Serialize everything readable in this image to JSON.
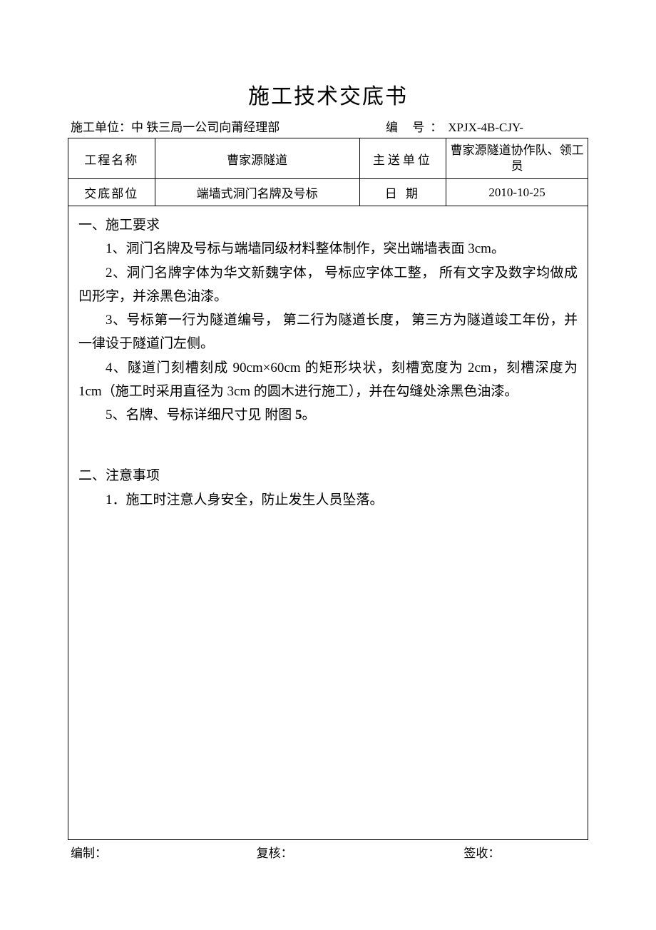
{
  "title": "施工技术交底书",
  "header": {
    "unit_label": "施工单位：",
    "unit_value": "中 铁三局一公司向莆经理部",
    "code_label": "编  号：",
    "code_value": "XPJX-4B-CJY-"
  },
  "table": {
    "row1": {
      "label1": "工程名称",
      "value1": "曹家源隧道",
      "label2": "主送单位",
      "value2": "曹家源隧道协作队、领工员"
    },
    "row2": {
      "label1": "交底部位",
      "value1": "端墙式洞门名牌及号标",
      "label2": "日    期",
      "value2": "2010-10-25"
    }
  },
  "content": {
    "section1_title": "一、施工要求",
    "p1": "1、洞门名牌及号标与端墙同级材料整体制作，突出端墙表面    3cm。",
    "p2": "2、洞门名牌字体为华文新魏字体，  号标应字体工整，  所有文字及数字均做成凹形字，并涂黑色油漆。",
    "p3": "3、号标第一行为隧道编号，  第二行为隧道长度，  第三方为隧道竣工年份，并一律设于隧道门左侧。",
    "p4": "4、隧道门刻槽刻成 90cm×60cm 的矩形块状，刻槽宽度为 2cm，刻槽深度为 1cm（施工时采用直径为 3cm 的圆木进行施工），并在勾缝处涂黑色油漆。",
    "p5_prefix": "5、名牌、号标详细尺寸见  附图 ",
    "p5_bold": "5",
    "p5_suffix": "。",
    "section2_title": "二、注意事项",
    "p6": "1．施工时注意人身安全，防止发生人员坠落。"
  },
  "footer": {
    "f1": "编制：",
    "f2": "复核：",
    "f3": "签收："
  }
}
